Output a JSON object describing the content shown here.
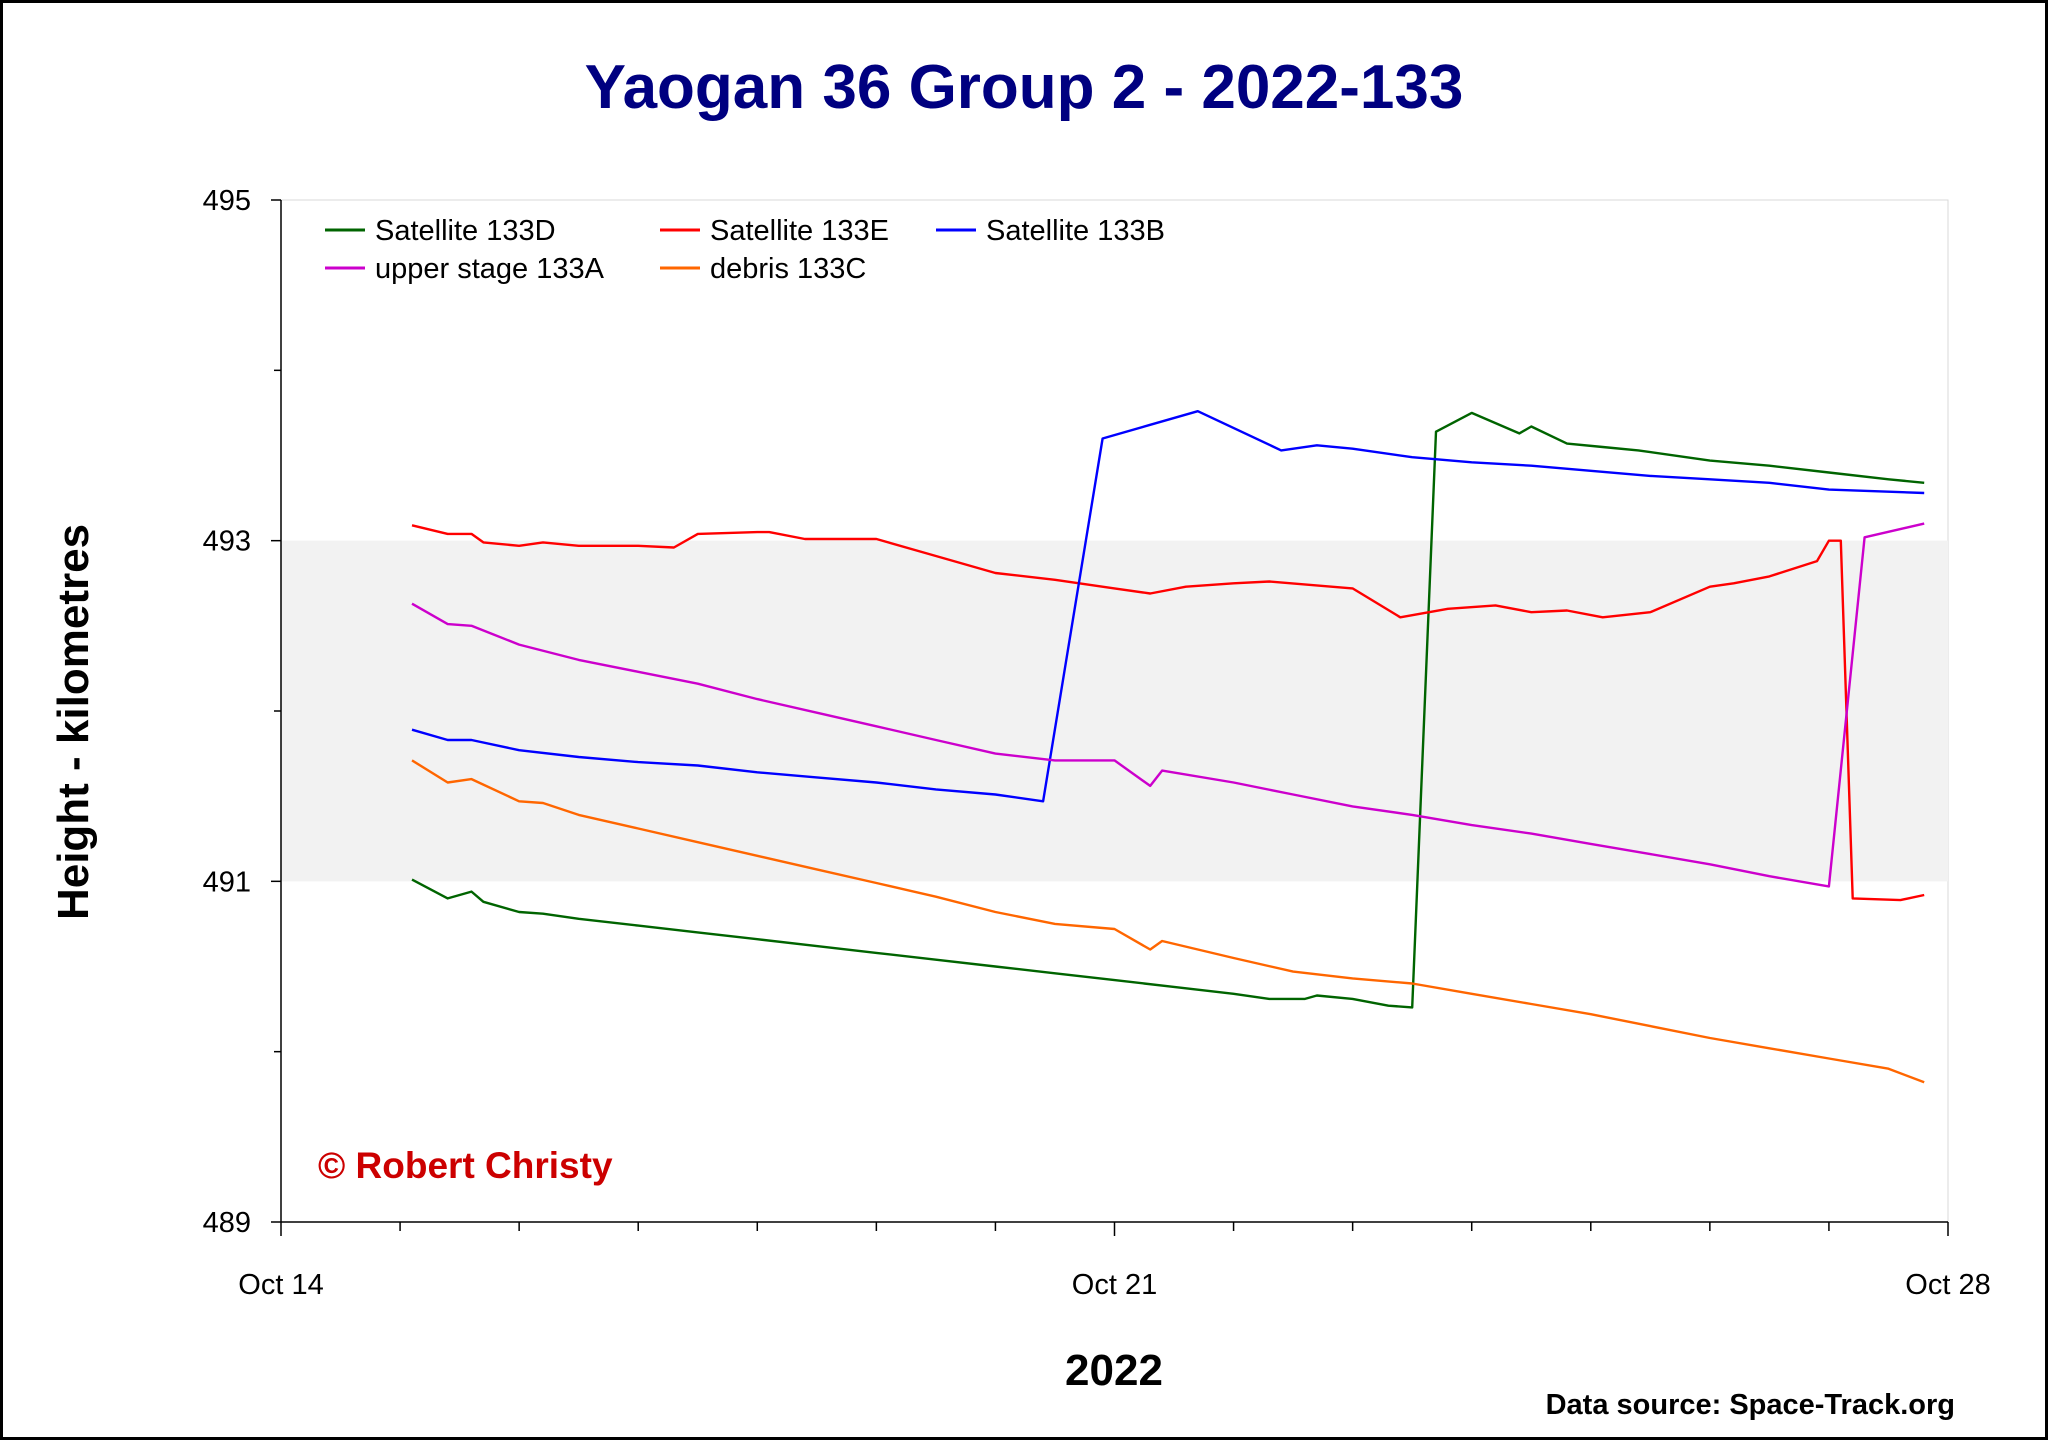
{
  "chart_data": {
    "type": "line",
    "title": "Yaogan 36 Group 2 - 2022-133",
    "xlabel": "2022",
    "ylabel": "Height - kilometres",
    "x_ticks": [
      "Oct 14",
      "Oct 21",
      "Oct 28"
    ],
    "y_ticks": [
      "489",
      "491",
      "493",
      "495"
    ],
    "xlim": [
      "2022-10-14",
      "2022-10-28"
    ],
    "ylim": [
      489,
      495
    ],
    "shaded_band": [
      491,
      493
    ],
    "legend_position": "top-left",
    "copyright": "© Robert Christy",
    "source": "Data source: Space-Track.org",
    "series": [
      {
        "name": "Satellite 133D",
        "color": "#006400",
        "points": [
          [
            "2022-10-15 02:24",
            491.01
          ],
          [
            "2022-10-15 09:36",
            490.9
          ],
          [
            "2022-10-15 14:24",
            490.94
          ],
          [
            "2022-10-15 16:48",
            490.88
          ],
          [
            "2022-10-16 00:00",
            490.82
          ],
          [
            "2022-10-16 04:48",
            490.81
          ],
          [
            "2022-10-16 12:00",
            490.78
          ],
          [
            "2022-10-17 00:00",
            490.74
          ],
          [
            "2022-10-17 12:00",
            490.7
          ],
          [
            "2022-10-18 00:00",
            490.66
          ],
          [
            "2022-10-18 12:00",
            490.62
          ],
          [
            "2022-10-19 00:00",
            490.58
          ],
          [
            "2022-10-19 12:00",
            490.54
          ],
          [
            "2022-10-20 00:00",
            490.5
          ],
          [
            "2022-10-20 12:00",
            490.46
          ],
          [
            "2022-10-21 00:00",
            490.42
          ],
          [
            "2022-10-21 12:00",
            490.38
          ],
          [
            "2022-10-22 00:00",
            490.34
          ],
          [
            "2022-10-22 07:12",
            490.31
          ],
          [
            "2022-10-22 14:24",
            490.31
          ],
          [
            "2022-10-22 16:48",
            490.33
          ],
          [
            "2022-10-23 00:00",
            490.31
          ],
          [
            "2022-10-23 07:12",
            490.27
          ],
          [
            "2022-10-23 12:00",
            490.26
          ],
          [
            "2022-10-23 16:48",
            493.64
          ],
          [
            "2022-10-24 00:00",
            493.75
          ],
          [
            "2022-10-24 09:36",
            493.63
          ],
          [
            "2022-10-24 12:00",
            493.67
          ],
          [
            "2022-10-24 19:12",
            493.57
          ],
          [
            "2022-10-25 02:24",
            493.55
          ],
          [
            "2022-10-25 09:36",
            493.53
          ],
          [
            "2022-10-26 00:00",
            493.47
          ],
          [
            "2022-10-26 12:00",
            493.44
          ],
          [
            "2022-10-27 00:00",
            493.4
          ],
          [
            "2022-10-27 12:00",
            493.36
          ],
          [
            "2022-10-27 19:12",
            493.34
          ]
        ]
      },
      {
        "name": "Satellite 133E",
        "color": "#ff0000",
        "points": [
          [
            "2022-10-15 02:24",
            493.09
          ],
          [
            "2022-10-15 09:36",
            493.04
          ],
          [
            "2022-10-15 14:24",
            493.04
          ],
          [
            "2022-10-15 16:48",
            492.99
          ],
          [
            "2022-10-16 00:00",
            492.97
          ],
          [
            "2022-10-16 04:48",
            492.99
          ],
          [
            "2022-10-16 12:00",
            492.97
          ],
          [
            "2022-10-17 00:00",
            492.97
          ],
          [
            "2022-10-17 07:12",
            492.96
          ],
          [
            "2022-10-17 12:00",
            493.04
          ],
          [
            "2022-10-18 00:00",
            493.05
          ],
          [
            "2022-10-18 02:24",
            493.05
          ],
          [
            "2022-10-18 09:36",
            493.01
          ],
          [
            "2022-10-19 00:00",
            493.01
          ],
          [
            "2022-10-19 12:00",
            492.91
          ],
          [
            "2022-10-20 00:00",
            492.81
          ],
          [
            "2022-10-20 12:00",
            492.77
          ],
          [
            "2022-10-21 00:00",
            492.72
          ],
          [
            "2022-10-21 07:12",
            492.69
          ],
          [
            "2022-10-21 14:24",
            492.73
          ],
          [
            "2022-10-22 00:00",
            492.75
          ],
          [
            "2022-10-22 07:12",
            492.76
          ],
          [
            "2022-10-23 00:00",
            492.72
          ],
          [
            "2022-10-23 09:36",
            492.55
          ],
          [
            "2022-10-23 19:12",
            492.6
          ],
          [
            "2022-10-24 04:48",
            492.62
          ],
          [
            "2022-10-24 12:00",
            492.58
          ],
          [
            "2022-10-24 19:12",
            492.59
          ],
          [
            "2022-10-25 02:24",
            492.55
          ],
          [
            "2022-10-25 12:00",
            492.58
          ],
          [
            "2022-10-26 00:00",
            492.73
          ],
          [
            "2022-10-26 04:48",
            492.75
          ],
          [
            "2022-10-26 12:00",
            492.79
          ],
          [
            "2022-10-26 21:36",
            492.88
          ],
          [
            "2022-10-27 00:00",
            493.0
          ],
          [
            "2022-10-27 02:24",
            493.0
          ],
          [
            "2022-10-27 04:48",
            490.9
          ],
          [
            "2022-10-27 14:24",
            490.89
          ],
          [
            "2022-10-27 19:12",
            490.92
          ]
        ]
      },
      {
        "name": "Satellite 133B",
        "color": "#0000ff",
        "points": [
          [
            "2022-10-15 02:24",
            491.89
          ],
          [
            "2022-10-15 09:36",
            491.83
          ],
          [
            "2022-10-15 14:24",
            491.83
          ],
          [
            "2022-10-16 00:00",
            491.77
          ],
          [
            "2022-10-16 12:00",
            491.73
          ],
          [
            "2022-10-17 00:00",
            491.7
          ],
          [
            "2022-10-17 12:00",
            491.68
          ],
          [
            "2022-10-18 00:00",
            491.64
          ],
          [
            "2022-10-18 12:00",
            491.61
          ],
          [
            "2022-10-19 00:00",
            491.58
          ],
          [
            "2022-10-19 12:00",
            491.54
          ],
          [
            "2022-10-20 00:00",
            491.51
          ],
          [
            "2022-10-20 09:36",
            491.47
          ],
          [
            "2022-10-20 21:36",
            493.6
          ],
          [
            "2022-10-21 07:12",
            493.68
          ],
          [
            "2022-10-21 16:48",
            493.76
          ],
          [
            "2022-10-22 09:36",
            493.53
          ],
          [
            "2022-10-22 16:48",
            493.56
          ],
          [
            "2022-10-23 00:00",
            493.54
          ],
          [
            "2022-10-23 12:00",
            493.49
          ],
          [
            "2022-10-24 00:00",
            493.46
          ],
          [
            "2022-10-24 12:00",
            493.44
          ],
          [
            "2022-10-25 00:00",
            493.41
          ],
          [
            "2022-10-25 12:00",
            493.38
          ],
          [
            "2022-10-26 00:00",
            493.36
          ],
          [
            "2022-10-26 12:00",
            493.34
          ],
          [
            "2022-10-27 00:00",
            493.3
          ],
          [
            "2022-10-27 19:12",
            493.28
          ]
        ]
      },
      {
        "name": "upper stage 133A",
        "color": "#cc00cc",
        "points": [
          [
            "2022-10-15 02:24",
            492.63
          ],
          [
            "2022-10-15 09:36",
            492.51
          ],
          [
            "2022-10-15 14:24",
            492.5
          ],
          [
            "2022-10-16 00:00",
            492.39
          ],
          [
            "2022-10-16 12:00",
            492.3
          ],
          [
            "2022-10-17 00:00",
            492.23
          ],
          [
            "2022-10-17 12:00",
            492.16
          ],
          [
            "2022-10-18 00:00",
            492.07
          ],
          [
            "2022-10-18 12:00",
            491.99
          ],
          [
            "2022-10-19 00:00",
            491.91
          ],
          [
            "2022-10-19 12:00",
            491.83
          ],
          [
            "2022-10-20 00:00",
            491.75
          ],
          [
            "2022-10-20 12:00",
            491.71
          ],
          [
            "2022-10-21 00:00",
            491.71
          ],
          [
            "2022-10-21 07:12",
            491.56
          ],
          [
            "2022-10-21 09:36",
            491.65
          ],
          [
            "2022-10-22 00:00",
            491.58
          ],
          [
            "2022-10-22 12:00",
            491.51
          ],
          [
            "2022-10-23 00:00",
            491.44
          ],
          [
            "2022-10-23 12:00",
            491.39
          ],
          [
            "2022-10-24 00:00",
            491.33
          ],
          [
            "2022-10-24 12:00",
            491.28
          ],
          [
            "2022-10-25 00:00",
            491.22
          ],
          [
            "2022-10-25 12:00",
            491.16
          ],
          [
            "2022-10-26 00:00",
            491.1
          ],
          [
            "2022-10-26 12:00",
            491.03
          ],
          [
            "2022-10-27 00:00",
            490.97
          ],
          [
            "2022-10-27 07:12",
            493.02
          ],
          [
            "2022-10-27 19:12",
            493.1
          ]
        ]
      },
      {
        "name": "debris 133C",
        "color": "#ff6600",
        "points": [
          [
            "2022-10-15 02:24",
            491.71
          ],
          [
            "2022-10-15 09:36",
            491.58
          ],
          [
            "2022-10-15 14:24",
            491.6
          ],
          [
            "2022-10-16 00:00",
            491.47
          ],
          [
            "2022-10-16 04:48",
            491.46
          ],
          [
            "2022-10-16 12:00",
            491.39
          ],
          [
            "2022-10-17 00:00",
            491.31
          ],
          [
            "2022-10-17 12:00",
            491.23
          ],
          [
            "2022-10-18 00:00",
            491.15
          ],
          [
            "2022-10-18 12:00",
            491.07
          ],
          [
            "2022-10-19 00:00",
            490.99
          ],
          [
            "2022-10-19 12:00",
            490.91
          ],
          [
            "2022-10-20 00:00",
            490.82
          ],
          [
            "2022-10-20 12:00",
            490.75
          ],
          [
            "2022-10-21 00:00",
            490.72
          ],
          [
            "2022-10-21 07:12",
            490.6
          ],
          [
            "2022-10-21 09:36",
            490.65
          ],
          [
            "2022-10-22 00:00",
            490.55
          ],
          [
            "2022-10-22 12:00",
            490.47
          ],
          [
            "2022-10-23 00:00",
            490.43
          ],
          [
            "2022-10-23 12:00",
            490.4
          ],
          [
            "2022-10-24 00:00",
            490.34
          ],
          [
            "2022-10-24 12:00",
            490.28
          ],
          [
            "2022-10-25 00:00",
            490.22
          ],
          [
            "2022-10-25 12:00",
            490.15
          ],
          [
            "2022-10-26 00:00",
            490.08
          ],
          [
            "2022-10-26 12:00",
            490.02
          ],
          [
            "2022-10-27 00:00",
            489.96
          ],
          [
            "2022-10-27 12:00",
            489.9
          ],
          [
            "2022-10-27 19:12",
            489.82
          ]
        ]
      }
    ]
  }
}
